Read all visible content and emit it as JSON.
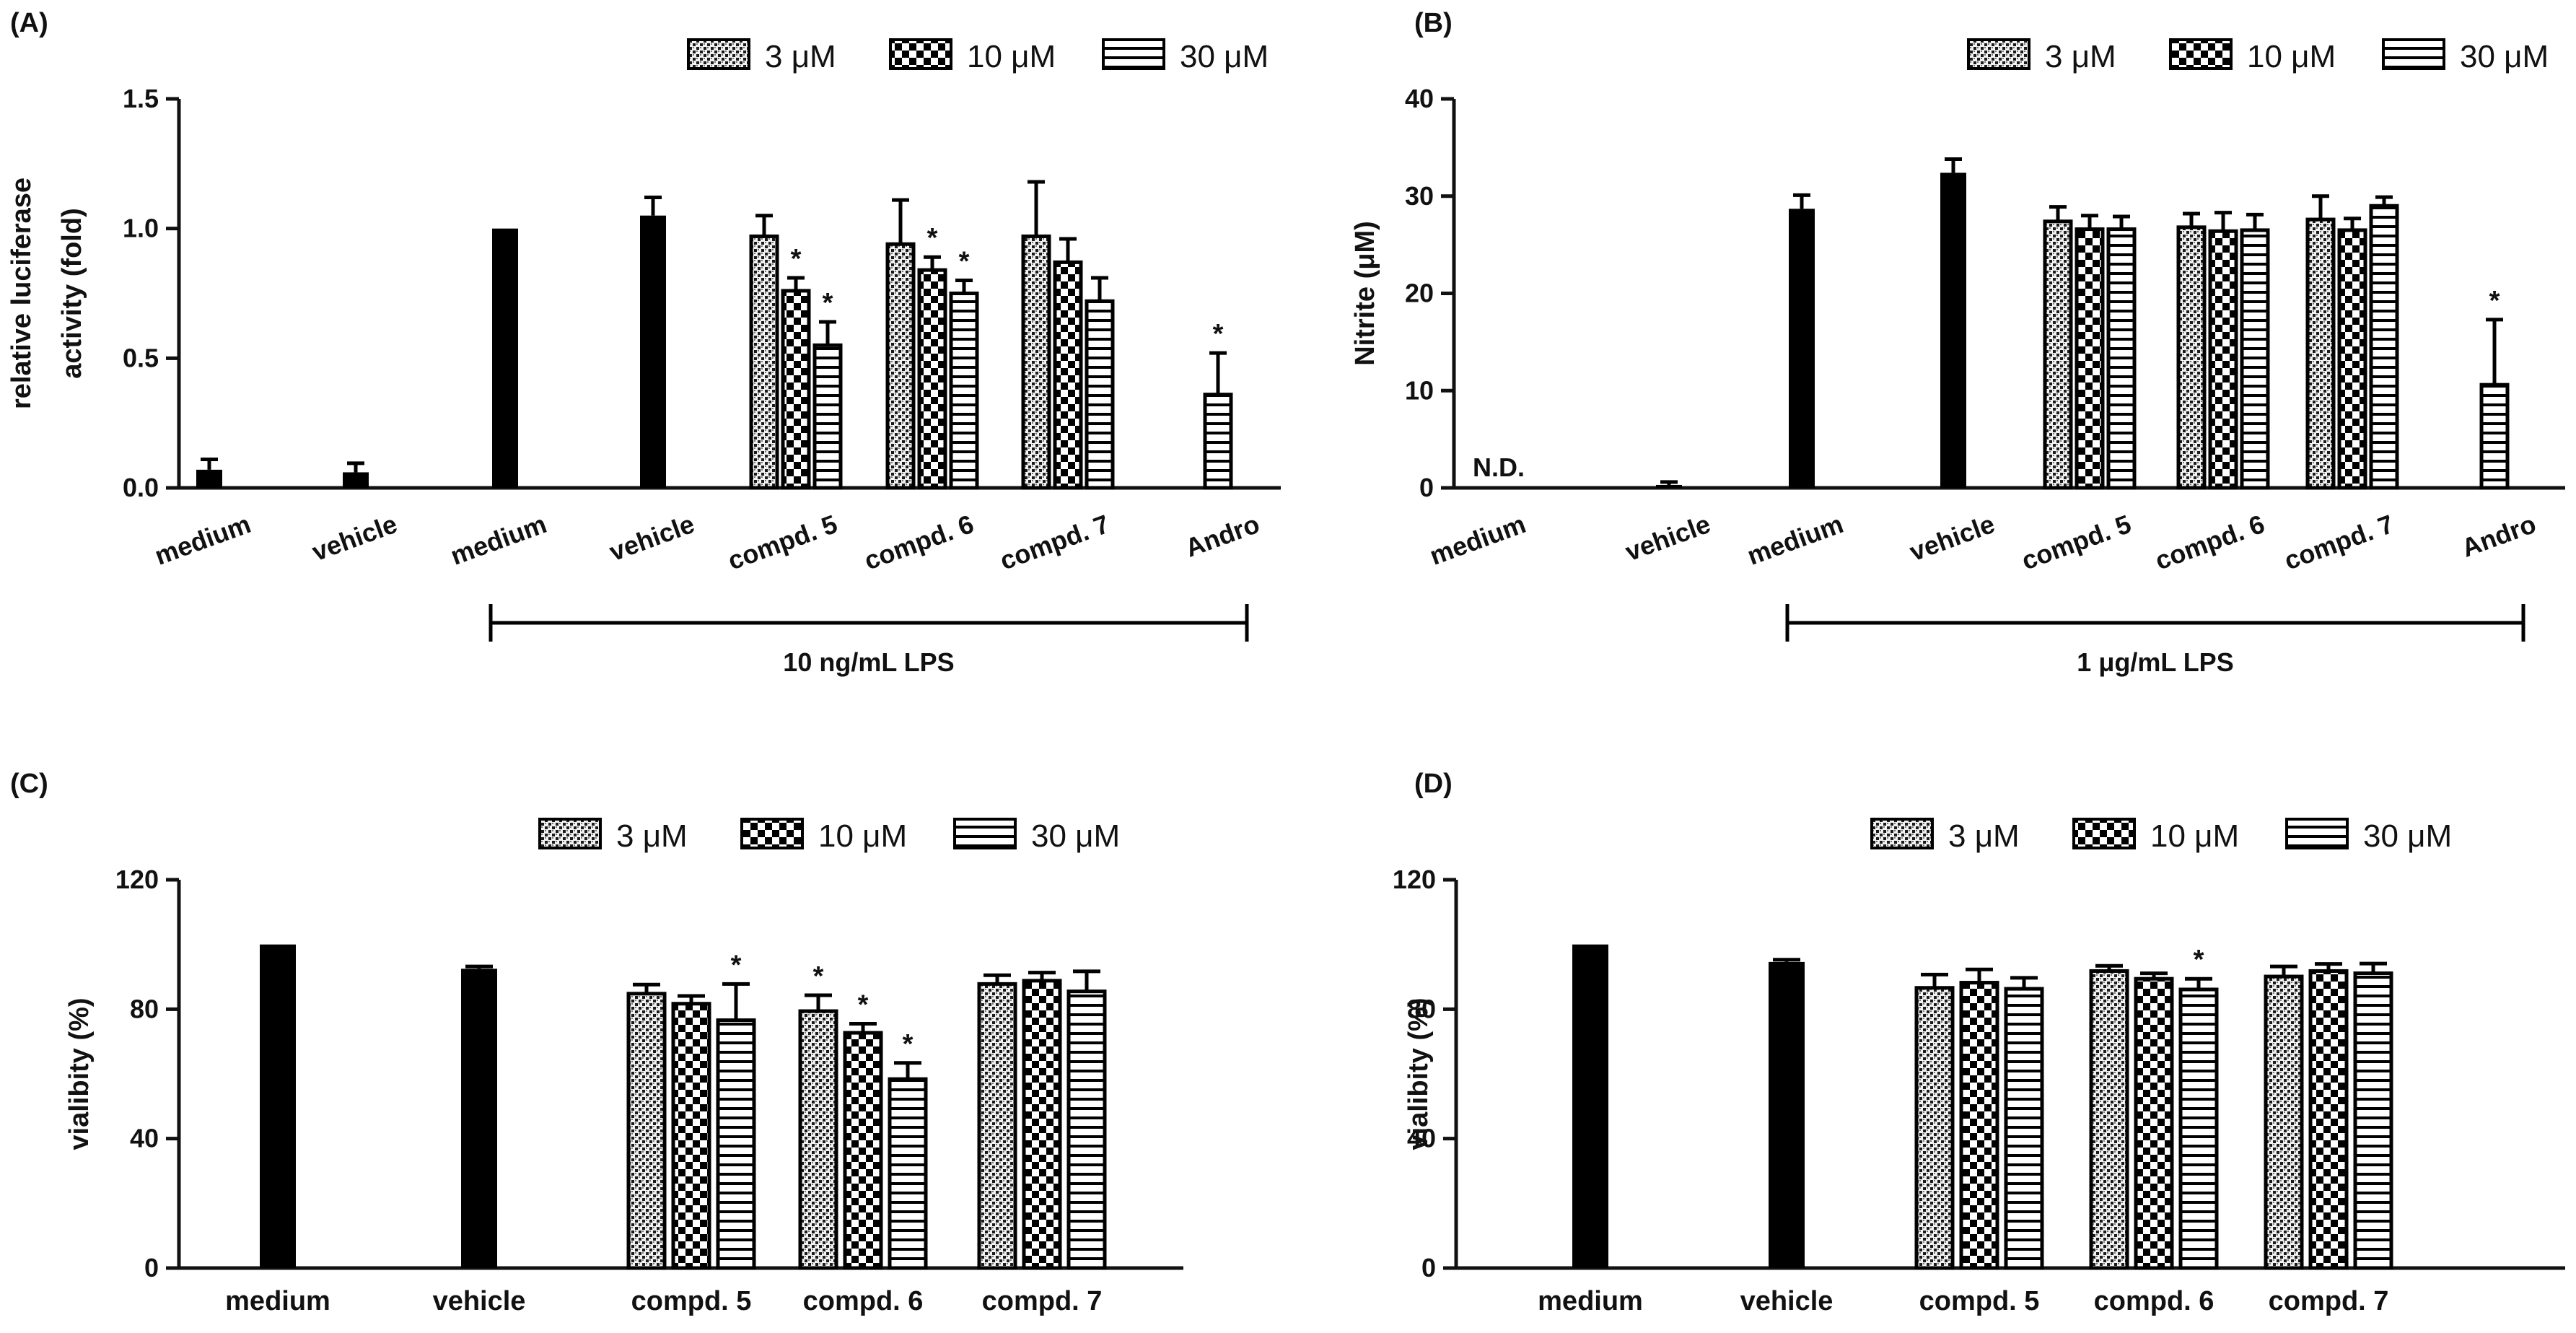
{
  "figure_description_panels": [
    "A",
    "B",
    "C",
    "D"
  ],
  "legend": {
    "items": [
      {
        "key": "d3",
        "label": "3 μM"
      },
      {
        "key": "d10",
        "label": "10 μM"
      },
      {
        "key": "d30",
        "label": "30 μM"
      }
    ]
  },
  "colors": {
    "solid": "#000000",
    "axis": "#111111",
    "background": "#ffffff"
  },
  "chart_data": [
    {
      "panel": "(A)",
      "type": "bar",
      "ylabel": [
        "relative luciferase",
        "activity (fold)"
      ],
      "ylim": [
        0,
        1.5
      ],
      "yticks": [
        0.0,
        0.5,
        1.0,
        1.5
      ],
      "ytick_labels": [
        "0.0",
        "0.5",
        "1.0",
        "1.5"
      ],
      "categories": [
        "medium",
        "vehicle",
        "medium",
        "vehicle",
        "compd. 5",
        "compd. 6",
        "compd. 7",
        "Andro"
      ],
      "rotated_labels": true,
      "bracket": {
        "from": 2,
        "to": 7,
        "label": "10 ng/mL LPS"
      },
      "bars": [
        {
          "cat": 0,
          "style": "solid",
          "value": 0.07,
          "err": 0.04
        },
        {
          "cat": 1,
          "style": "solid",
          "value": 0.06,
          "err": 0.035
        },
        {
          "cat": 2,
          "style": "solid",
          "value": 1.0,
          "err": 0
        },
        {
          "cat": 3,
          "style": "solid",
          "value": 1.05,
          "err": 0.07
        },
        {
          "cat": 4,
          "style": "d3",
          "value": 0.97,
          "err": 0.08
        },
        {
          "cat": 4,
          "style": "d10",
          "value": 0.76,
          "err": 0.05,
          "sig": "*"
        },
        {
          "cat": 4,
          "style": "d30",
          "value": 0.55,
          "err": 0.09,
          "sig": "*"
        },
        {
          "cat": 5,
          "style": "d3",
          "value": 0.94,
          "err": 0.17
        },
        {
          "cat": 5,
          "style": "d10",
          "value": 0.84,
          "err": 0.05,
          "sig": "*"
        },
        {
          "cat": 5,
          "style": "d30",
          "value": 0.75,
          "err": 0.05,
          "sig": "*"
        },
        {
          "cat": 6,
          "style": "d3",
          "value": 0.97,
          "err": 0.21
        },
        {
          "cat": 6,
          "style": "d10",
          "value": 0.87,
          "err": 0.09
        },
        {
          "cat": 6,
          "style": "d30",
          "value": 0.72,
          "err": 0.09
        },
        {
          "cat": 7,
          "style": "d30",
          "value": 0.36,
          "err": 0.16,
          "sig": "*"
        }
      ]
    },
    {
      "panel": "(B)",
      "type": "bar",
      "ylabel": [
        "Nitrite (μM)"
      ],
      "ylim": [
        0,
        40
      ],
      "yticks": [
        0,
        10,
        20,
        30,
        40
      ],
      "ytick_labels": [
        "0",
        "10",
        "20",
        "30",
        "40"
      ],
      "categories": [
        "medium",
        "vehicle",
        "medium",
        "vehicle",
        "compd. 5",
        "compd. 6",
        "compd. 7",
        "Andro"
      ],
      "rotated_labels": true,
      "bracket": {
        "from": 2,
        "to": 7,
        "label": "1 μg/mL LPS"
      },
      "annotations": [
        {
          "cat": 0,
          "text": "N.D."
        }
      ],
      "bars": [
        {
          "cat": 1,
          "style": "solid",
          "value": 0.3,
          "err": 0.3
        },
        {
          "cat": 2,
          "style": "solid",
          "value": 28.7,
          "err": 1.4
        },
        {
          "cat": 3,
          "style": "solid",
          "value": 32.4,
          "err": 1.4
        },
        {
          "cat": 4,
          "style": "d3",
          "value": 27.4,
          "err": 1.5
        },
        {
          "cat": 4,
          "style": "d10",
          "value": 26.6,
          "err": 1.4
        },
        {
          "cat": 4,
          "style": "d30",
          "value": 26.6,
          "err": 1.3
        },
        {
          "cat": 5,
          "style": "d3",
          "value": 26.8,
          "err": 1.4
        },
        {
          "cat": 5,
          "style": "d10",
          "value": 26.4,
          "err": 1.9
        },
        {
          "cat": 5,
          "style": "d30",
          "value": 26.5,
          "err": 1.6
        },
        {
          "cat": 6,
          "style": "d3",
          "value": 27.6,
          "err": 2.4
        },
        {
          "cat": 6,
          "style": "d10",
          "value": 26.5,
          "err": 1.2
        },
        {
          "cat": 6,
          "style": "d30",
          "value": 29.0,
          "err": 0.9
        },
        {
          "cat": 7,
          "style": "d30",
          "value": 10.6,
          "err": 6.7,
          "sig": "*"
        }
      ]
    },
    {
      "panel": "(C)",
      "type": "bar",
      "ylabel": [
        "vialibity (%)"
      ],
      "ylim": [
        0,
        120
      ],
      "yticks": [
        0,
        40,
        80,
        120
      ],
      "ytick_labels": [
        "0",
        "40",
        "80",
        "120"
      ],
      "categories": [
        "medium",
        "vehicle",
        "compd. 5",
        "compd. 6",
        "compd. 7"
      ],
      "rotated_labels": false,
      "bars": [
        {
          "cat": 0,
          "style": "solid",
          "value": 100,
          "err": 0
        },
        {
          "cat": 1,
          "style": "solid",
          "value": 92.5,
          "err": 0.7
        },
        {
          "cat": 2,
          "style": "d3",
          "value": 84.8,
          "err": 2.8
        },
        {
          "cat": 2,
          "style": "d10",
          "value": 81.7,
          "err": 2.4
        },
        {
          "cat": 2,
          "style": "d30",
          "value": 76.6,
          "err": 11.2,
          "sig": "*"
        },
        {
          "cat": 3,
          "style": "d3",
          "value": 79.4,
          "err": 4.9,
          "sig": "*"
        },
        {
          "cat": 3,
          "style": "d10",
          "value": 72.7,
          "err": 2.8,
          "sig": "*"
        },
        {
          "cat": 3,
          "style": "d30",
          "value": 58.4,
          "err": 5.0,
          "sig": "*"
        },
        {
          "cat": 4,
          "style": "d3",
          "value": 87.8,
          "err": 2.7
        },
        {
          "cat": 4,
          "style": "d10",
          "value": 88.8,
          "err": 2.5
        },
        {
          "cat": 4,
          "style": "d30",
          "value": 85.5,
          "err": 6.2
        }
      ]
    },
    {
      "panel": "(D)",
      "type": "bar",
      "ylabel": [
        "vialibity (%)"
      ],
      "ylim": [
        0,
        120
      ],
      "yticks": [
        0,
        40,
        80,
        120
      ],
      "ytick_labels": [
        "0",
        "40",
        "80",
        "120"
      ],
      "categories": [
        "medium",
        "vehicle",
        "compd. 5",
        "compd. 6",
        "compd. 7"
      ],
      "rotated_labels": false,
      "bars": [
        {
          "cat": 0,
          "style": "solid",
          "value": 100,
          "err": 0
        },
        {
          "cat": 1,
          "style": "solid",
          "value": 94.6,
          "err": 0.7
        },
        {
          "cat": 2,
          "style": "d3",
          "value": 86.6,
          "err": 4.1
        },
        {
          "cat": 2,
          "style": "d10",
          "value": 88.2,
          "err": 4.1
        },
        {
          "cat": 2,
          "style": "d30",
          "value": 86.3,
          "err": 3.4
        },
        {
          "cat": 3,
          "style": "d3",
          "value": 91.8,
          "err": 1.6
        },
        {
          "cat": 3,
          "style": "d10",
          "value": 89.4,
          "err": 1.7
        },
        {
          "cat": 3,
          "style": "d30",
          "value": 86.1,
          "err": 3.3,
          "sig": "*"
        },
        {
          "cat": 4,
          "style": "d3",
          "value": 90.1,
          "err": 3.1
        },
        {
          "cat": 4,
          "style": "d10",
          "value": 91.8,
          "err": 2.2
        },
        {
          "cat": 4,
          "style": "d30",
          "value": 91.1,
          "err": 3.0
        }
      ]
    }
  ]
}
